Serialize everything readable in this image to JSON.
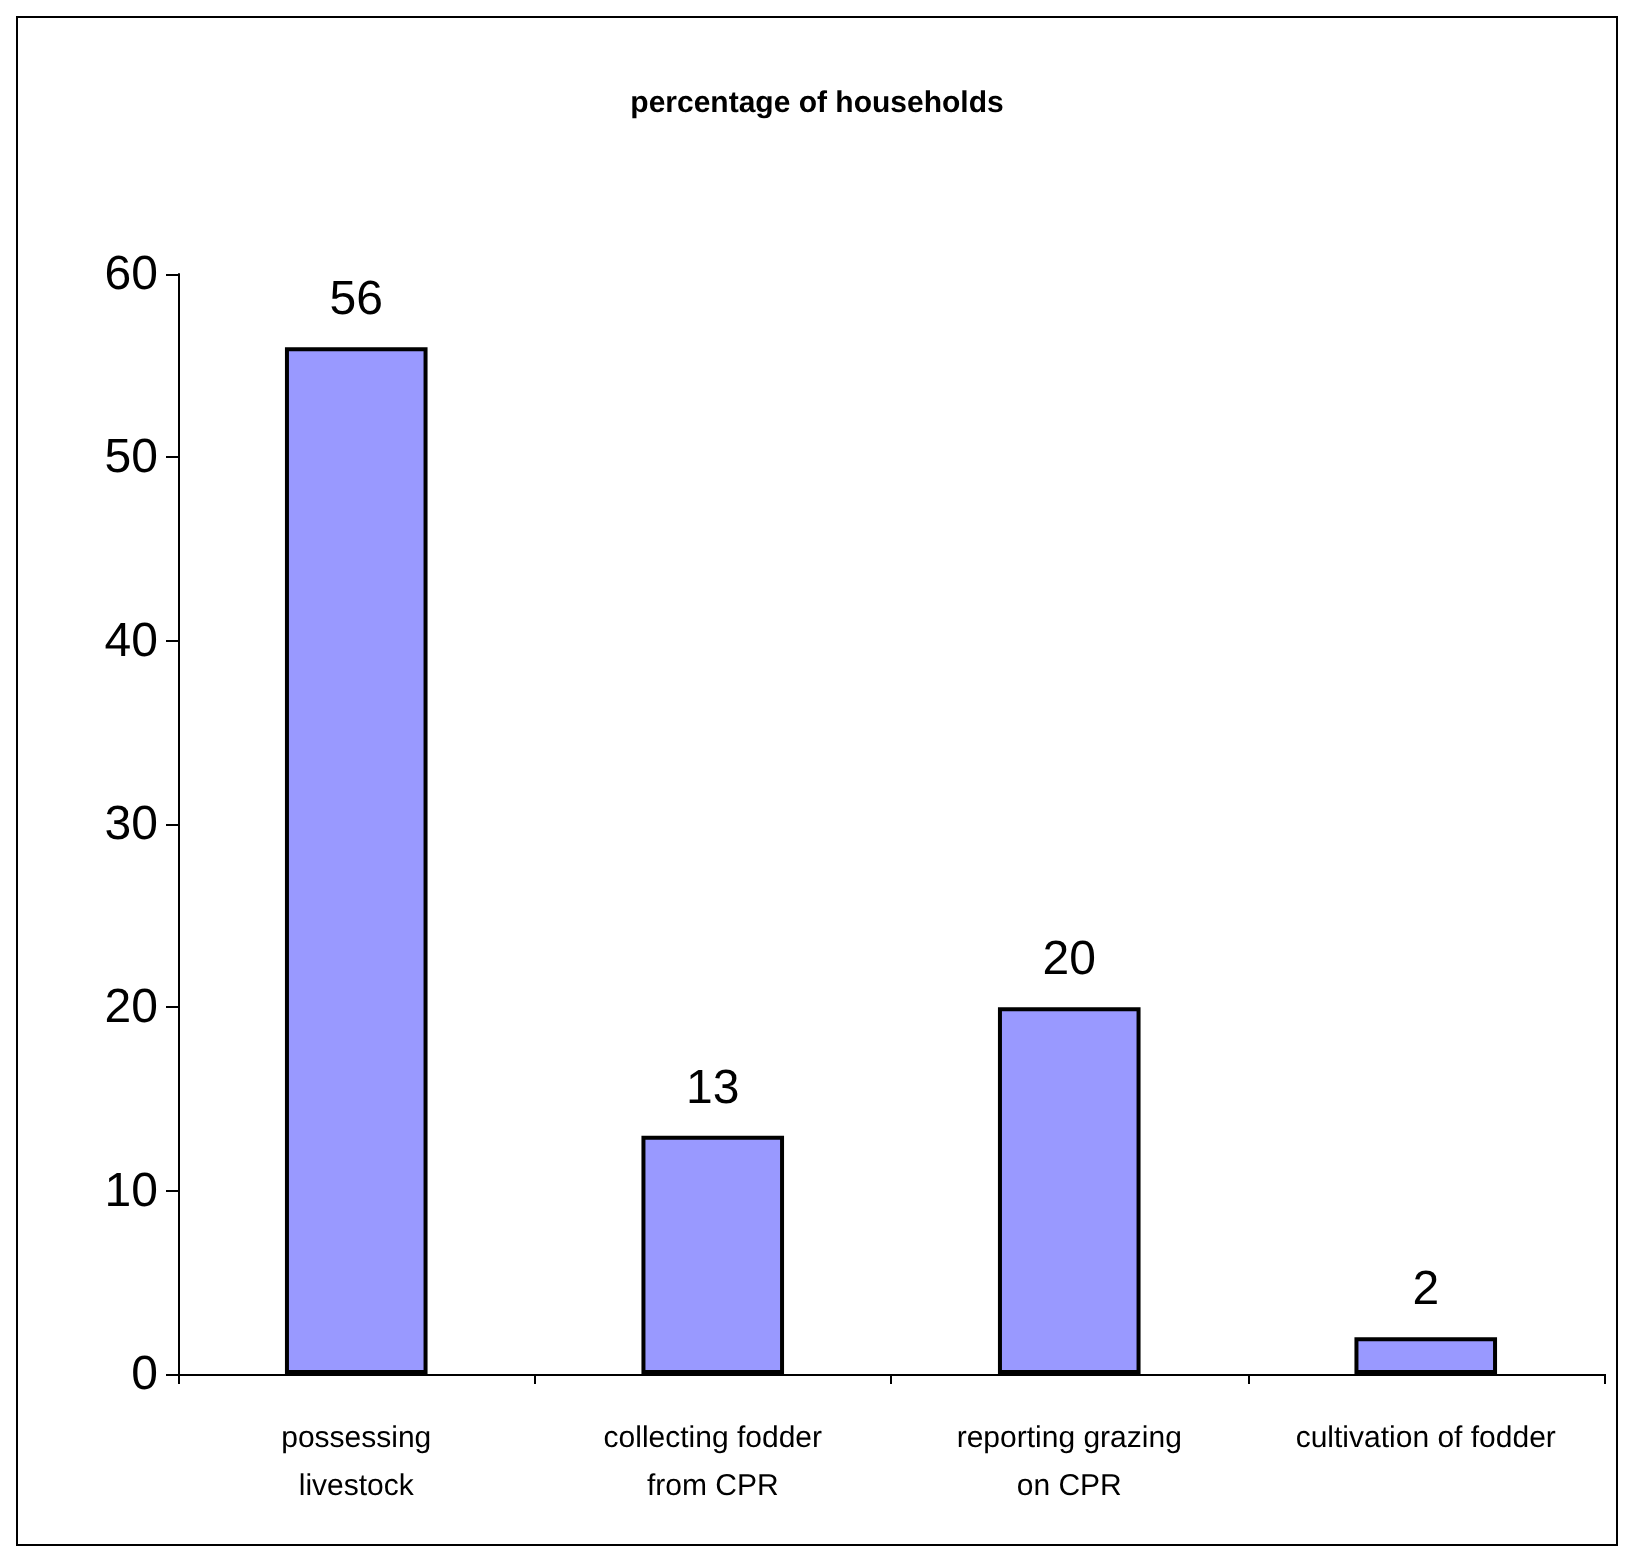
{
  "chart_data": {
    "type": "bar",
    "title": "percentage of households",
    "categories": [
      "possessing\nlivestock",
      "collecting fodder\nfrom CPR",
      "reporting grazing\non CPR",
      "cultivation of fodder"
    ],
    "values": [
      56,
      13,
      20,
      2
    ],
    "color": "#9999ff",
    "ylim": [
      0,
      60
    ],
    "yticks": [
      0,
      10,
      20,
      30,
      40,
      50,
      60
    ],
    "grid": false,
    "data_labels": true
  }
}
